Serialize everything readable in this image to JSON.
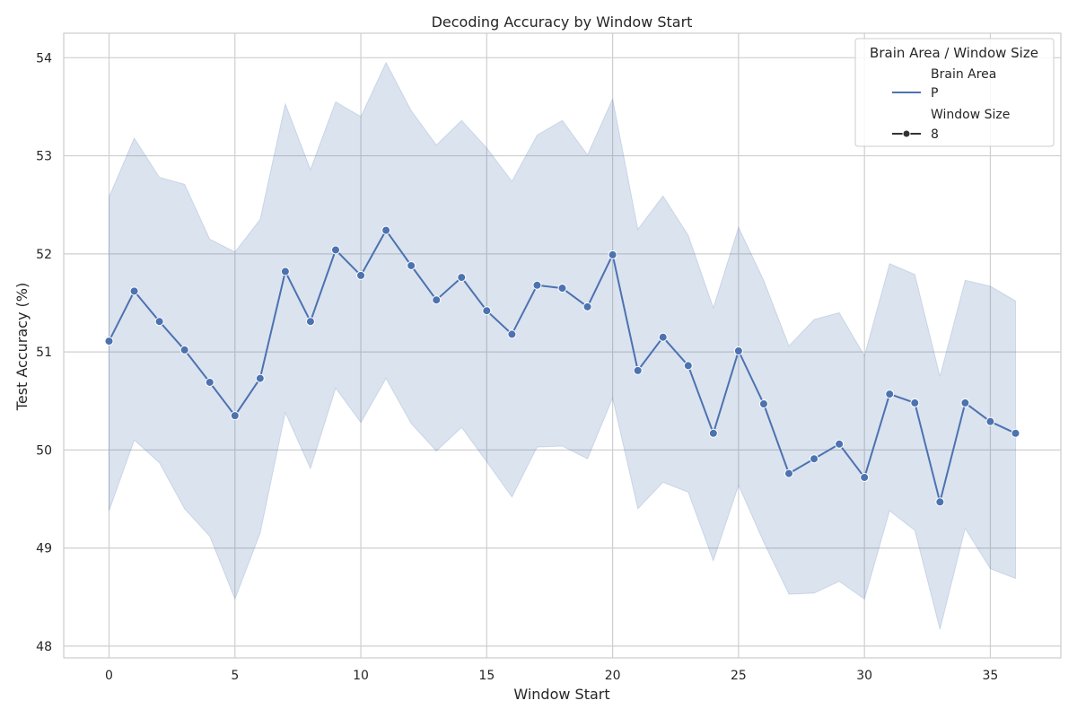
{
  "chart_data": {
    "type": "line",
    "title": "Decoding Accuracy by Window Start",
    "xlabel": "Window Start",
    "ylabel": "Test Accuracy (%)",
    "xlim": [
      -1.8,
      37.8
    ],
    "ylim": [
      47.88,
      54.25
    ],
    "xticks": [
      0,
      5,
      10,
      15,
      20,
      25,
      30,
      35
    ],
    "yticks": [
      48,
      49,
      50,
      51,
      52,
      53,
      54
    ],
    "grid": true,
    "legend": {
      "title": "Brain Area / Window Size",
      "placement": "top-right",
      "entries": [
        {
          "label": "Brain Area",
          "kind": "header"
        },
        {
          "label": "P",
          "kind": "line"
        },
        {
          "label": "Window Size",
          "kind": "header"
        },
        {
          "label": "8",
          "kind": "marker-line"
        }
      ]
    },
    "colors": {
      "line": "#4c72b0",
      "band": "#4c72b0",
      "grid": "#cfcfcf",
      "spine": "#cccccc"
    },
    "series": [
      {
        "name": "P",
        "x": [
          0,
          1,
          2,
          3,
          4,
          5,
          6,
          7,
          8,
          9,
          10,
          11,
          12,
          13,
          14,
          15,
          16,
          17,
          18,
          19,
          20,
          21,
          22,
          23,
          24,
          25,
          26,
          27,
          28,
          29,
          30,
          31,
          32,
          33,
          34,
          35,
          36
        ],
        "values": [
          51.11,
          51.62,
          51.31,
          51.02,
          50.69,
          50.35,
          50.73,
          51.82,
          51.31,
          52.04,
          51.78,
          52.24,
          51.88,
          51.53,
          51.76,
          51.42,
          51.18,
          51.68,
          51.65,
          51.46,
          51.99,
          50.81,
          51.15,
          50.86,
          50.17,
          51.01,
          50.47,
          49.76,
          49.91,
          50.06,
          49.72,
          50.57,
          50.48,
          49.47,
          50.48,
          50.29,
          50.17
        ],
        "ci_lower": [
          49.38,
          50.1,
          49.87,
          49.4,
          49.12,
          48.48,
          49.15,
          50.38,
          49.81,
          50.63,
          50.28,
          50.73,
          50.27,
          49.99,
          50.23,
          49.88,
          49.52,
          50.03,
          50.04,
          49.91,
          50.53,
          49.4,
          49.67,
          49.57,
          48.87,
          49.64,
          49.06,
          48.53,
          48.54,
          48.66,
          48.48,
          49.38,
          49.18,
          48.17,
          49.2,
          48.79,
          48.69
        ],
        "ci_upper": [
          52.58,
          53.18,
          52.78,
          52.71,
          52.15,
          52.02,
          52.35,
          53.53,
          52.86,
          53.55,
          53.4,
          53.95,
          53.46,
          53.11,
          53.36,
          53.08,
          52.74,
          53.21,
          53.36,
          53.01,
          53.58,
          52.25,
          52.59,
          52.19,
          51.45,
          52.27,
          51.73,
          51.06,
          51.33,
          51.4,
          50.96,
          51.9,
          51.79,
          50.75,
          51.73,
          51.67,
          51.52
        ]
      }
    ]
  }
}
